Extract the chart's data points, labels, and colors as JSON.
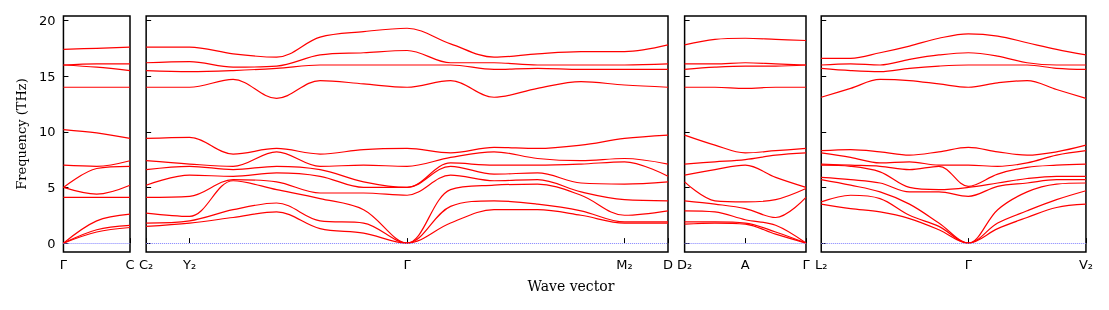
{
  "chart_data": [
    {
      "type": "line",
      "ylabel": "Frequency (THz)",
      "marker": "none",
      "categories": [
        "Γ",
        null,
        "C"
      ],
      "ylim": [
        -0.8,
        20.4
      ],
      "yticks": [
        0,
        5,
        10,
        15,
        20
      ],
      "ref_lines": [
        {
          "axis": "y",
          "value": 0,
          "color": "#8080ff",
          "line_style": "dotted"
        }
      ],
      "series": [
        {
          "color": "#ff0000",
          "values": [
            0,
            1.0,
            1.4
          ]
        },
        {
          "color": "#ff0000",
          "values": [
            0,
            1.2,
            1.6
          ]
        },
        {
          "color": "#ff0000",
          "values": [
            0,
            2.0,
            2.6
          ]
        },
        {
          "color": "#ff0000",
          "values": [
            4.1,
            4.1,
            4.1
          ]
        },
        {
          "color": "#ff0000",
          "values": [
            5.0,
            4.4,
            5.2
          ]
        },
        {
          "color": "#ff0000",
          "values": [
            5.0,
            6.7,
            6.9
          ]
        },
        {
          "color": "#ff0000",
          "values": [
            7.0,
            6.9,
            7.4
          ]
        },
        {
          "color": "#ff0000",
          "values": [
            10.2,
            9.9,
            9.4
          ]
        },
        {
          "color": "#ff0000",
          "values": [
            14.0,
            14.0,
            14.0
          ]
        },
        {
          "color": "#ff0000",
          "values": [
            16.0,
            15.8,
            15.5
          ]
        },
        {
          "color": "#ff0000",
          "values": [
            16.0,
            16.1,
            16.1
          ]
        },
        {
          "color": "#ff0000",
          "values": [
            17.4,
            17.5,
            17.6
          ]
        }
      ]
    },
    {
      "type": "line",
      "xlabel": "Wave vector",
      "marker": "none",
      "tick_labels": "x",
      "categories": [
        "C₂",
        "Y₂",
        null,
        null,
        null,
        null,
        "Γ",
        null,
        null,
        null,
        null,
        "M₂",
        "D"
      ],
      "ylim": [
        -0.8,
        20.4
      ],
      "yticks": [
        0,
        5,
        10,
        15,
        20
      ],
      "ref_lines": [
        {
          "axis": "y",
          "value": 0,
          "color": "#8080ff",
          "line_style": "dotted"
        }
      ],
      "series": [
        {
          "color": "#ff0000",
          "values": [
            1.5,
            1.8,
            2.3,
            2.8,
            1.3,
            0.9,
            0,
            1.8,
            3.0,
            3.0,
            2.5,
            1.8,
            1.8
          ]
        },
        {
          "color": "#ff0000",
          "values": [
            1.8,
            2.0,
            3.0,
            3.6,
            2.0,
            1.8,
            0,
            3.3,
            3.8,
            3.5,
            2.9,
            1.9,
            1.9
          ]
        },
        {
          "color": "#ff0000",
          "values": [
            2.7,
            2.4,
            5.6,
            4.8,
            4.0,
            3.0,
            0,
            4.8,
            5.2,
            5.3,
            4.3,
            2.5,
            2.9
          ]
        },
        {
          "color": "#ff0000",
          "values": [
            4.1,
            4.2,
            5.7,
            5.5,
            4.5,
            4.5,
            4.3,
            6.1,
            5.6,
            5.7,
            4.6,
            3.9,
            3.8
          ]
        },
        {
          "color": "#ff0000",
          "values": [
            5.2,
            6.1,
            6.0,
            6.3,
            6.0,
            5.0,
            5.0,
            6.9,
            6.2,
            6.3,
            5.4,
            5.3,
            5.5
          ]
        },
        {
          "color": "#ff0000",
          "values": [
            6.6,
            6.9,
            6.6,
            6.9,
            6.6,
            5.5,
            5.0,
            7.2,
            7.0,
            7.0,
            7.1,
            7.3,
            6.0
          ]
        },
        {
          "color": "#ff0000",
          "values": [
            7.4,
            7.1,
            6.9,
            8.2,
            6.9,
            7.0,
            6.9,
            7.7,
            8.2,
            7.6,
            7.4,
            7.6,
            7.1
          ]
        },
        {
          "color": "#ff0000",
          "values": [
            9.4,
            9.5,
            8.0,
            8.5,
            8.0,
            8.4,
            8.5,
            8.1,
            8.6,
            8.5,
            8.8,
            9.4,
            9.7
          ]
        },
        {
          "color": "#ff0000",
          "values": [
            14.0,
            14.0,
            14.7,
            13.0,
            14.6,
            14.3,
            14.0,
            14.6,
            13.1,
            13.9,
            14.5,
            14.2,
            14.0
          ]
        },
        {
          "color": "#ff0000",
          "values": [
            15.5,
            15.4,
            15.5,
            15.7,
            16.0,
            16.0,
            16.0,
            16.0,
            15.6,
            15.7,
            15.6,
            15.6,
            15.6
          ]
        },
        {
          "color": "#ff0000",
          "values": [
            16.2,
            16.3,
            15.8,
            15.9,
            16.9,
            17.1,
            17.3,
            16.2,
            16.2,
            16.0,
            16.0,
            16.0,
            16.1
          ]
        },
        {
          "color": "#ff0000",
          "values": [
            17.6,
            17.6,
            17.0,
            16.7,
            18.5,
            19.0,
            19.3,
            17.9,
            16.7,
            17.0,
            17.2,
            17.2,
            17.8
          ]
        }
      ]
    },
    {
      "type": "line",
      "marker": "none",
      "tick_labels": "x",
      "categories": [
        "D₂",
        null,
        "A",
        null,
        "Γ"
      ],
      "ylim": [
        -0.8,
        20.4
      ],
      "yticks": [
        0,
        5,
        10,
        15,
        20
      ],
      "ref_lines": [
        {
          "axis": "y",
          "value": 0,
          "color": "#8080ff",
          "line_style": "dotted"
        }
      ],
      "series": [
        {
          "color": "#ff0000",
          "values": [
            1.7,
            1.8,
            1.7,
            0.8,
            0
          ]
        },
        {
          "color": "#ff0000",
          "values": [
            1.9,
            1.9,
            1.8,
            1.0,
            0
          ]
        },
        {
          "color": "#ff0000",
          "values": [
            2.9,
            2.8,
            2.1,
            1.6,
            0
          ]
        },
        {
          "color": "#ff0000",
          "values": [
            3.8,
            3.5,
            3.1,
            2.3,
            4.1
          ]
        },
        {
          "color": "#ff0000",
          "values": [
            5.5,
            3.8,
            3.7,
            3.9,
            4.9
          ]
        },
        {
          "color": "#ff0000",
          "values": [
            6.1,
            6.6,
            7.0,
            5.9,
            5.0
          ]
        },
        {
          "color": "#ff0000",
          "values": [
            7.1,
            7.3,
            7.5,
            7.9,
            8.1
          ]
        },
        {
          "color": "#ff0000",
          "values": [
            9.7,
            8.8,
            8.1,
            8.3,
            8.5
          ]
        },
        {
          "color": "#ff0000",
          "values": [
            14.0,
            14.0,
            13.9,
            14.0,
            14.0
          ]
        },
        {
          "color": "#ff0000",
          "values": [
            15.6,
            15.8,
            15.9,
            15.9,
            16.0
          ]
        },
        {
          "color": "#ff0000",
          "values": [
            16.1,
            16.1,
            16.2,
            16.1,
            16.0
          ]
        },
        {
          "color": "#ff0000",
          "values": [
            17.8,
            18.3,
            18.4,
            18.3,
            18.2
          ]
        }
      ]
    },
    {
      "type": "line",
      "marker": "none",
      "tick_labels": "x",
      "categories": [
        "L₂",
        null,
        null,
        null,
        null,
        "Γ",
        null,
        null,
        null,
        "V₂"
      ],
      "ylim": [
        -0.8,
        20.4
      ],
      "yticks": [
        0,
        5,
        10,
        15,
        20
      ],
      "ref_lines": [
        {
          "axis": "y",
          "value": 0,
          "color": "#8080ff",
          "line_style": "dotted"
        }
      ],
      "series": [
        {
          "color": "#ff0000",
          "values": [
            3.5,
            3.1,
            2.8,
            2.2,
            1.2,
            0,
            1.3,
            2.3,
            3.2,
            3.5
          ]
        },
        {
          "color": "#ff0000",
          "values": [
            3.7,
            4.3,
            4.0,
            2.5,
            1.5,
            0,
            1.8,
            2.9,
            3.9,
            4.7
          ]
        },
        {
          "color": "#ff0000",
          "values": [
            5.7,
            5.2,
            4.6,
            3.5,
            1.8,
            0,
            3.0,
            4.6,
            5.3,
            5.4
          ]
        },
        {
          "color": "#ff0000",
          "values": [
            5.9,
            5.7,
            5.4,
            4.6,
            4.6,
            4.2,
            5.1,
            5.4,
            5.7,
            5.7
          ]
        },
        {
          "color": "#ff0000",
          "values": [
            7.0,
            6.9,
            6.4,
            5.0,
            4.8,
            5.0,
            5.4,
            5.8,
            6.0,
            6.0
          ]
        },
        {
          "color": "#ff0000",
          "values": [
            7.1,
            7.0,
            6.9,
            6.6,
            6.9,
            5.1,
            6.2,
            6.8,
            7.0,
            7.1
          ]
        },
        {
          "color": "#ff0000",
          "values": [
            8.1,
            7.7,
            7.2,
            7.3,
            7.0,
            7.0,
            6.9,
            7.2,
            7.9,
            8.3
          ]
        },
        {
          "color": "#ff0000",
          "values": [
            8.3,
            8.4,
            8.2,
            7.9,
            8.2,
            8.6,
            8.2,
            7.9,
            8.2,
            8.8
          ]
        },
        {
          "color": "#ff0000",
          "values": [
            13.1,
            13.9,
            14.7,
            14.6,
            14.3,
            14.0,
            14.4,
            14.6,
            13.8,
            13.0
          ]
        },
        {
          "color": "#ff0000",
          "values": [
            15.7,
            15.5,
            15.4,
            15.7,
            15.9,
            16.0,
            16.0,
            16.0,
            15.7,
            15.6
          ]
        },
        {
          "color": "#ff0000",
          "values": [
            16.0,
            16.1,
            16.0,
            16.5,
            16.9,
            17.1,
            16.8,
            16.2,
            16.0,
            16.0
          ]
        },
        {
          "color": "#ff0000",
          "values": [
            16.6,
            16.6,
            17.1,
            17.7,
            18.4,
            18.8,
            18.6,
            18.0,
            17.4,
            16.9
          ]
        }
      ]
    }
  ]
}
